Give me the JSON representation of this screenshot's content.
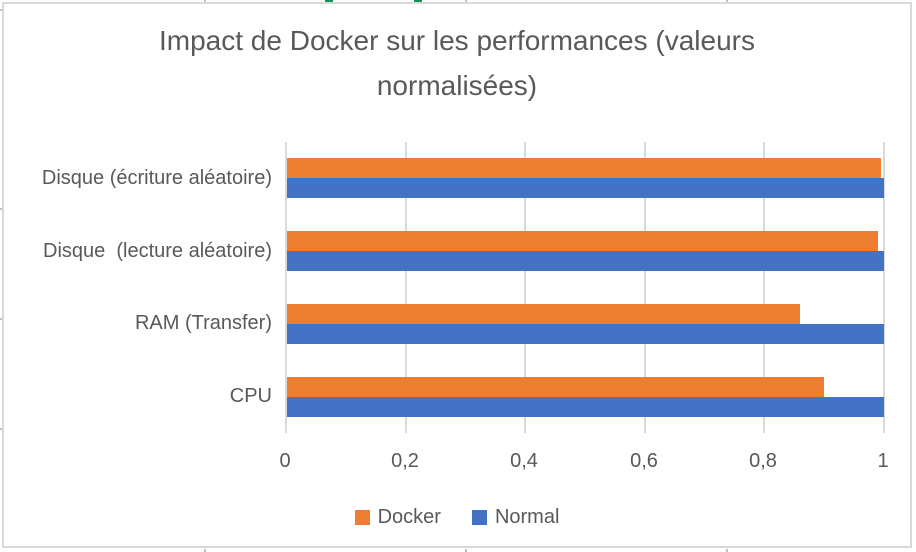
{
  "chart_data": {
    "type": "bar",
    "orientation": "horizontal",
    "title": "Impact de Docker sur les performances (valeurs normalisées)",
    "categories": [
      "Disque (écriture aléatoire)",
      "Disque  (lecture aléatoire)",
      "RAM (Transfer)",
      "CPU"
    ],
    "categories_order": "top-to-bottom",
    "series": [
      {
        "name": "Docker",
        "color": "#ED7D31",
        "values": [
          0.995,
          0.99,
          0.86,
          0.9
        ]
      },
      {
        "name": "Normal",
        "color": "#4472C4",
        "values": [
          1,
          1,
          1,
          1
        ]
      }
    ],
    "xlim": [
      0,
      1
    ],
    "x_ticks": [
      {
        "value": 0,
        "label": "0"
      },
      {
        "value": 0.2,
        "label": "0,2"
      },
      {
        "value": 0.4,
        "label": "0,4"
      },
      {
        "value": 0.6,
        "label": "0,6"
      },
      {
        "value": 0.8,
        "label": "0,8"
      },
      {
        "value": 1,
        "label": "1"
      }
    ],
    "grid": true,
    "legend_position": "bottom"
  },
  "colors": {
    "background": "#FFFFFF",
    "chart_border": "#D9D9D9",
    "gridline": "#D9D9D9",
    "text": "#595959",
    "series_docker": "#ED7D31",
    "series_normal": "#4472C4"
  }
}
